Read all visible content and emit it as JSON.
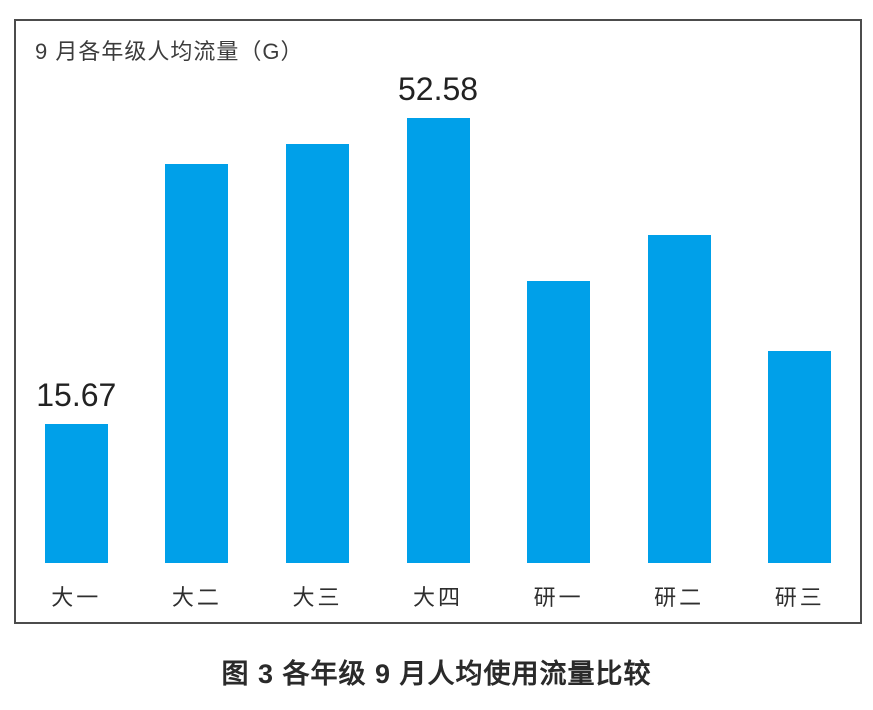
{
  "chart": {
    "bar_color": "#00A0E9",
    "frame_border_color": "#4C4C4C",
    "text_color": "#2E2E2E"
  },
  "chart_data": {
    "type": "bar",
    "title": "9 月各年级人均流量（G）",
    "caption": "图 3  各年级 9 月人均使用流量比较",
    "categories": [
      "大一",
      "大二",
      "大三",
      "大四",
      "研一",
      "研二",
      "研三"
    ],
    "values": [
      15.67,
      47.1,
      49.5,
      52.58,
      33.0,
      38.5,
      24.5
    ],
    "data_labels": [
      "15.67",
      "",
      "",
      "52.58",
      "",
      "",
      ""
    ],
    "xlabel": "",
    "ylabel": "",
    "ylim": [
      0,
      55
    ],
    "grid": false,
    "legend": "none",
    "bar_color": "#00A0E9"
  }
}
